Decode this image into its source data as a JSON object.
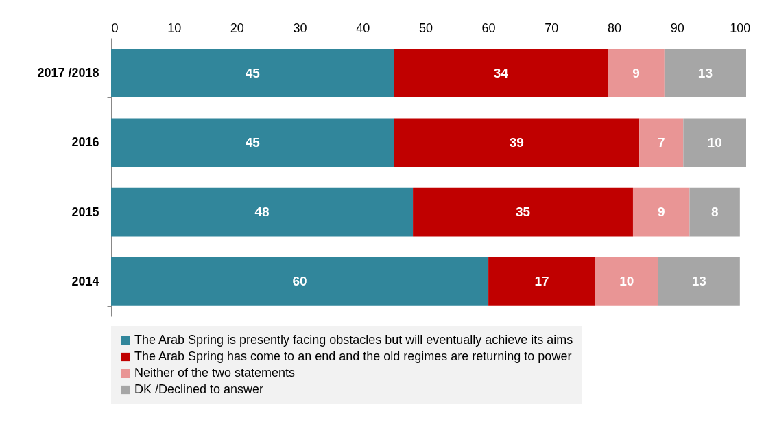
{
  "chart_data": {
    "type": "bar",
    "orientation": "horizontal",
    "stacked": true,
    "data_labels": true,
    "legend": "bottom",
    "grid": false,
    "categories": [
      "2017 /2018",
      "2016",
      "2015",
      "2014"
    ],
    "xlim": [
      0,
      101
    ],
    "xticks": [
      0,
      10,
      20,
      30,
      40,
      50,
      60,
      70,
      80,
      90,
      100
    ],
    "series": [
      {
        "name": "The Arab Spring is presently facing obstacles but will eventually achieve its aims",
        "color": "#31869b",
        "values": [
          45,
          45,
          48,
          60
        ]
      },
      {
        "name": "The Arab Spring has come to an end and the old regimes are returning to power",
        "color": "#c00000",
        "values": [
          34,
          39,
          35,
          17
        ]
      },
      {
        "name": "Neither of the two statements",
        "color": "#e99595",
        "values": [
          9,
          7,
          9,
          10
        ]
      },
      {
        "name": "DK /Declined to answer",
        "color": "#a6a6a6",
        "values": [
          13,
          10,
          8,
          13
        ]
      }
    ]
  }
}
